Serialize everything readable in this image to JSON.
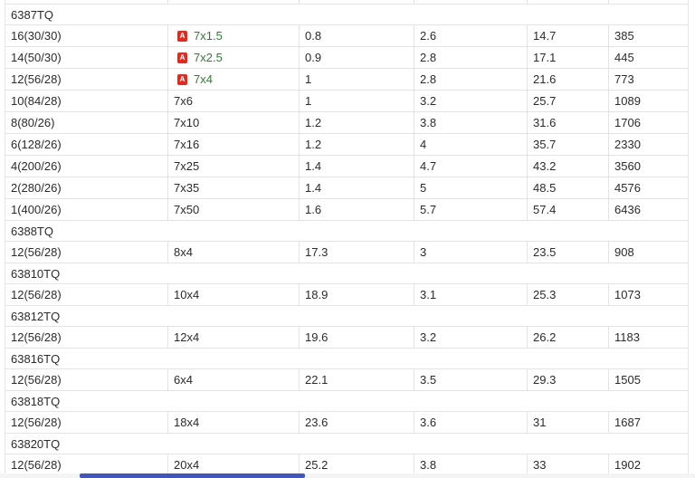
{
  "colors": {
    "link_green": "#2e7d32",
    "pdf_icon_red": "#e02b20",
    "scrollbar_thumb_blue": "#4355b9",
    "grid_border": "#e3e3e3",
    "text": "#2b2b2b"
  },
  "table": {
    "sections": [
      {
        "code": "6387TQ",
        "rows": [
          {
            "size": "16(30/30)",
            "spec": "7x1.5",
            "has_pdf": true,
            "values": [
              "0.8",
              "2.6",
              "14.7",
              "385"
            ]
          },
          {
            "size": "14(50/30)",
            "spec": "7x2.5",
            "has_pdf": true,
            "values": [
              "0.9",
              "2.8",
              "17.1",
              "445"
            ]
          },
          {
            "size": "12(56/28)",
            "spec": "7x4",
            "has_pdf": true,
            "values": [
              "1",
              "2.8",
              "21.6",
              "773"
            ]
          },
          {
            "size": "10(84/28)",
            "spec": "7x6",
            "has_pdf": false,
            "values": [
              "1",
              "3.2",
              "25.7",
              "1089"
            ]
          },
          {
            "size": "8(80/26)",
            "spec": "7x10",
            "has_pdf": false,
            "values": [
              "1.2",
              "3.8",
              "31.6",
              "1706"
            ]
          },
          {
            "size": "6(128/26)",
            "spec": "7x16",
            "has_pdf": false,
            "values": [
              "1.2",
              "4",
              "35.7",
              "2330"
            ]
          },
          {
            "size": "4(200/26)",
            "spec": "7x25",
            "has_pdf": false,
            "values": [
              "1.4",
              "4.7",
              "43.2",
              "3560"
            ]
          },
          {
            "size": "2(280/26)",
            "spec": "7x35",
            "has_pdf": false,
            "values": [
              "1.4",
              "5",
              "48.5",
              "4576"
            ]
          },
          {
            "size": "1(400/26)",
            "spec": "7x50",
            "has_pdf": false,
            "values": [
              "1.6",
              "5.7",
              "57.4",
              "6436"
            ]
          }
        ]
      },
      {
        "code": "6388TQ",
        "rows": [
          {
            "size": "12(56/28)",
            "spec": "8x4",
            "has_pdf": false,
            "values": [
              "17.3",
              "3",
              "23.5",
              "908"
            ]
          }
        ]
      },
      {
        "code": "63810TQ",
        "rows": [
          {
            "size": "12(56/28)",
            "spec": "10x4",
            "has_pdf": false,
            "values": [
              "18.9",
              "3.1",
              "25.3",
              "1073"
            ]
          }
        ]
      },
      {
        "code": "63812TQ",
        "rows": [
          {
            "size": "12(56/28)",
            "spec": "12x4",
            "has_pdf": false,
            "values": [
              "19.6",
              "3.2",
              "26.2",
              "1183"
            ]
          }
        ]
      },
      {
        "code": "63816TQ",
        "rows": [
          {
            "size": "12(56/28)",
            "spec": "6x4",
            "has_pdf": false,
            "values": [
              "22.1",
              "3.5",
              "29.3",
              "1505"
            ]
          }
        ]
      },
      {
        "code": "63818TQ",
        "rows": [
          {
            "size": "12(56/28)",
            "spec": "18x4",
            "has_pdf": false,
            "values": [
              "23.6",
              "3.6",
              "31",
              "1687"
            ]
          }
        ]
      },
      {
        "code": "63820TQ",
        "rows": [
          {
            "size": "12(56/28)",
            "spec": "20x4",
            "has_pdf": false,
            "values": [
              "25.2",
              "3.8",
              "33",
              "1902"
            ]
          }
        ]
      }
    ]
  },
  "scrollbar": {
    "orientation": "horizontal"
  }
}
